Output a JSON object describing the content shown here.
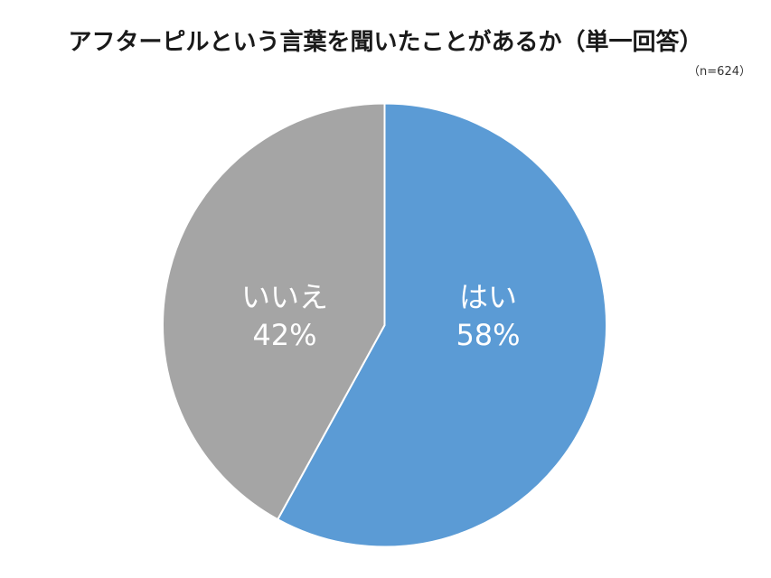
{
  "chart_data": {
    "type": "pie",
    "title": "アフターピルという言葉を聞いたことがあるか（単一回答）",
    "subtitle": "（n=624）",
    "categories": [
      "はい",
      "いいえ"
    ],
    "values": [
      58,
      42
    ],
    "unit": "%",
    "colors": [
      "#5B9BD5",
      "#A5A5A5"
    ],
    "labels": [
      {
        "name": "はい",
        "value": "58%"
      },
      {
        "name": "いいえ",
        "value": "42%"
      }
    ],
    "legend": "none",
    "start_angle": "12 o'clock, clockwise"
  }
}
